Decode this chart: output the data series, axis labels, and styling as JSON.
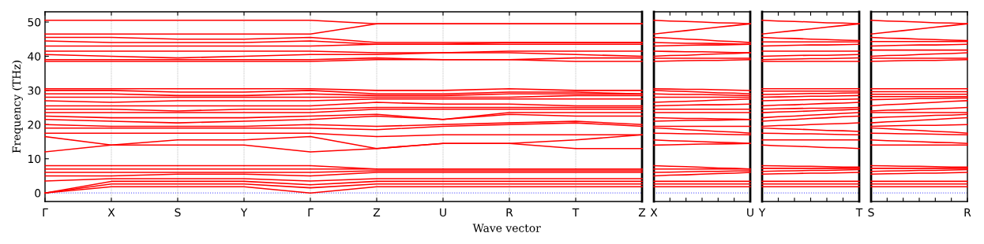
{
  "chart_data": [
    {
      "type": "line",
      "color": "#ff0000",
      "ylabel": "Frequency (THz)",
      "xlabel": "Wave vector",
      "ylim": [
        -2.5,
        53
      ],
      "yticks": [
        0,
        10,
        20,
        30,
        40,
        50
      ],
      "categories": [
        "Γ",
        "X",
        "S",
        "Y",
        "Γ",
        "Z",
        "U",
        "R",
        "T",
        "Z"
      ],
      "grid": "x",
      "ref_lines": [
        {
          "axis": "y",
          "value": 0,
          "color": "#6666ff",
          "line_style": "dotted"
        }
      ],
      "series": [
        {
          "values": [
            0,
            1.8,
            1.8,
            1.8,
            0,
            1.8,
            1.8,
            1.8,
            1.8,
            1.8
          ]
        },
        {
          "values": [
            0,
            2.6,
            2.6,
            2.6,
            1.5,
            2.6,
            2.6,
            2.6,
            2.6,
            2.6
          ]
        },
        {
          "values": [
            0,
            3.4,
            3.4,
            3.4,
            2.4,
            3.4,
            3.4,
            3.4,
            3.4,
            3.4
          ]
        },
        {
          "values": [
            3.5,
            4.2,
            4.2,
            4.2,
            3.5,
            4.2,
            4.2,
            4.2,
            4.2,
            4.2
          ]
        },
        {
          "values": [
            5,
            5,
            5.5,
            5.5,
            5,
            6,
            6,
            6,
            6,
            6
          ]
        },
        {
          "values": [
            6,
            6,
            6,
            6,
            6,
            6.5,
            6.5,
            6.5,
            6.5,
            6.5
          ]
        },
        {
          "values": [
            7,
            7,
            7,
            7,
            7,
            7,
            7,
            7,
            7,
            7
          ]
        },
        {
          "values": [
            8,
            8,
            8,
            8,
            8,
            7,
            7,
            7,
            7,
            7
          ]
        },
        {
          "values": [
            12,
            14,
            14,
            14,
            12,
            13,
            14.5,
            14.5,
            13,
            13
          ]
        },
        {
          "values": [
            16.5,
            14,
            15.5,
            15.5,
            16.5,
            13,
            14.5,
            14.5,
            15.5,
            17
          ]
        },
        {
          "values": [
            17.5,
            17.5,
            17.5,
            17.5,
            17.5,
            16.5,
            17,
            17,
            17,
            17
          ]
        },
        {
          "values": [
            19,
            19,
            19,
            19,
            19,
            18.5,
            19.5,
            20,
            20.5,
            19.5
          ]
        },
        {
          "values": [
            20,
            19.5,
            19.5,
            19.5,
            20,
            19.5,
            20,
            20.5,
            21,
            20
          ]
        },
        {
          "values": [
            21.5,
            21,
            20.5,
            21,
            21.5,
            22.5,
            21.5,
            23,
            22.5,
            22.5
          ]
        },
        {
          "values": [
            22.5,
            22,
            22,
            22,
            22.5,
            23,
            21.5,
            23.5,
            23.5,
            23.5
          ]
        },
        {
          "values": [
            23.5,
            23.5,
            23.5,
            23.5,
            23.5,
            24.5,
            24.5,
            24.5,
            24.5,
            24.5
          ]
        },
        {
          "values": [
            24.5,
            24.5,
            24,
            24.5,
            24.5,
            25,
            25,
            25,
            25,
            25
          ]
        },
        {
          "values": [
            25.5,
            25.5,
            25.5,
            25.5,
            25.5,
            26.5,
            26,
            26,
            25.5,
            25.5
          ]
        },
        {
          "values": [
            27,
            26.5,
            27,
            27,
            27,
            27.5,
            27.5,
            27.5,
            27.5,
            27.5
          ]
        },
        {
          "values": [
            28,
            28,
            28,
            28,
            28,
            28,
            28,
            28,
            28.5,
            28.5
          ]
        },
        {
          "values": [
            29,
            29,
            28.5,
            28.5,
            29,
            28.5,
            28.5,
            29,
            29,
            29
          ]
        },
        {
          "values": [
            30,
            30,
            29.5,
            29.5,
            30,
            29,
            29,
            29.5,
            29.5,
            29
          ]
        },
        {
          "values": [
            30.5,
            30.5,
            30.5,
            30.5,
            30.5,
            30,
            30,
            30.5,
            30,
            30
          ]
        },
        {
          "values": [
            38.5,
            38.5,
            38.5,
            38.5,
            38.5,
            39,
            39,
            39,
            38.5,
            38.5
          ]
        },
        {
          "values": [
            39,
            39,
            39,
            39,
            39,
            39.5,
            39,
            39,
            39.5,
            39.5
          ]
        },
        {
          "values": [
            40.5,
            40,
            39.5,
            40,
            40.5,
            40.5,
            41,
            41,
            40.5,
            40
          ]
        },
        {
          "values": [
            41.5,
            41.5,
            41.5,
            41.5,
            41.5,
            41,
            41,
            41.5,
            41.5,
            41.5
          ]
        },
        {
          "values": [
            43,
            43,
            43,
            43,
            43,
            43.5,
            43.5,
            43.5,
            43.5,
            43.5
          ]
        },
        {
          "values": [
            44.5,
            44,
            44,
            44,
            44.5,
            43.5,
            43.5,
            44,
            44,
            44
          ]
        },
        {
          "values": [
            45.5,
            45.5,
            45,
            45,
            45.5,
            44,
            44,
            44,
            44,
            44
          ]
        },
        {
          "values": [
            46.5,
            46.5,
            46.5,
            46.5,
            46.5,
            49.5,
            49.5,
            49.5,
            49.5,
            49.5
          ]
        },
        {
          "values": [
            50.5,
            50.5,
            50.5,
            50.5,
            50.5,
            49.5,
            49.5,
            49.5,
            49.5,
            49.5
          ]
        }
      ]
    },
    {
      "type": "line",
      "color": "#ff0000",
      "ylim": [
        -2.5,
        53
      ],
      "yticks": [
        0,
        10,
        20,
        30,
        40,
        50
      ],
      "tick_labels": "x",
      "categories": [
        "X",
        null,
        null,
        null,
        null,
        null,
        "U"
      ],
      "ref_lines": [
        {
          "axis": "y",
          "value": 0,
          "color": "#6666ff",
          "line_style": "dotted"
        }
      ],
      "series": [
        {
          "values": [
            1.8,
            1.8,
            1.8,
            1.8,
            1.8,
            1.8,
            1.8
          ]
        },
        {
          "values": [
            2.6,
            2.6,
            2.6,
            2.6,
            2.6,
            2.6,
            2.6
          ]
        },
        {
          "values": [
            3.4,
            3.4,
            3.4,
            3.4,
            3.4,
            3.4,
            3.4
          ]
        },
        {
          "values": [
            5,
            5.2,
            5.3,
            5.5,
            5.7,
            5.8,
            6
          ]
        },
        {
          "values": [
            6,
            6.1,
            6.2,
            6.3,
            6.3,
            6.4,
            6.5
          ]
        },
        {
          "values": [
            7,
            7,
            7,
            7,
            7,
            7,
            7
          ]
        },
        {
          "values": [
            8,
            7.8,
            7.7,
            7.5,
            7.3,
            7.2,
            7
          ]
        },
        {
          "values": [
            14,
            14.1,
            14.2,
            14.3,
            14.3,
            14.4,
            14.5
          ]
        },
        {
          "values": [
            15.5,
            15.3,
            15.2,
            15,
            14.8,
            14.7,
            14.5
          ]
        },
        {
          "values": [
            17.5,
            17.4,
            17.3,
            17.3,
            17.2,
            17.1,
            17
          ]
        },
        {
          "values": [
            19,
            18.8,
            18.5,
            18.3,
            18,
            17.8,
            17.5
          ]
        },
        {
          "values": [
            19.5,
            19.5,
            19.5,
            19.5,
            19.5,
            19.5,
            19.5
          ]
        },
        {
          "values": [
            21,
            21.1,
            21.2,
            21.3,
            21.3,
            21.4,
            21.5
          ]
        },
        {
          "values": [
            22,
            21.9,
            21.8,
            21.8,
            21.7,
            21.6,
            21.5
          ]
        },
        {
          "values": [
            23.5,
            23.5,
            23.5,
            23.5,
            23.5,
            23.5,
            23.5
          ]
        },
        {
          "values": [
            24.5,
            24.5,
            24.5,
            24.5,
            24.5,
            24.5,
            24.5
          ]
        },
        {
          "values": [
            25.5,
            25.6,
            25.7,
            25.8,
            25.8,
            25.9,
            26
          ]
        },
        {
          "values": [
            26.5,
            26.7,
            26.8,
            27,
            27.2,
            27.3,
            27.5
          ]
        },
        {
          "values": [
            28,
            28,
            28,
            28,
            28,
            28,
            28
          ]
        },
        {
          "values": [
            29,
            28.9,
            28.8,
            28.8,
            28.7,
            28.6,
            28.5
          ]
        },
        {
          "values": [
            30,
            29.8,
            29.7,
            29.5,
            29.3,
            29.2,
            29
          ]
        },
        {
          "values": [
            30.5,
            30.4,
            30.3,
            30.3,
            30.2,
            30.1,
            30
          ]
        },
        {
          "values": [
            38.5,
            38.6,
            38.7,
            38.8,
            38.8,
            38.9,
            39
          ]
        },
        {
          "values": [
            39.4,
            39.4,
            39.4,
            39.4,
            39.4,
            39.4,
            39.4
          ]
        },
        {
          "values": [
            40,
            40.2,
            40.3,
            40.5,
            40.7,
            40.8,
            41
          ]
        },
        {
          "values": [
            41.5,
            41.4,
            41.3,
            41.3,
            41.2,
            41.1,
            41
          ]
        },
        {
          "values": [
            43,
            43.1,
            43.2,
            43.3,
            43.3,
            43.4,
            43.5
          ]
        },
        {
          "values": [
            44,
            43.9,
            43.8,
            43.8,
            43.7,
            43.6,
            43.5
          ]
        },
        {
          "values": [
            45.5,
            45.3,
            45,
            44.8,
            44.5,
            44.3,
            44
          ]
        },
        {
          "values": [
            46.5,
            47,
            47.5,
            48,
            48.5,
            49,
            49.5
          ]
        },
        {
          "values": [
            50.5,
            50.3,
            50.2,
            50,
            49.8,
            49.7,
            49.5
          ]
        }
      ]
    },
    {
      "type": "line",
      "color": "#ff0000",
      "ylim": [
        -2.5,
        53
      ],
      "yticks": [
        0,
        10,
        20,
        30,
        40,
        50
      ],
      "tick_labels": "x",
      "categories": [
        "Y",
        null,
        null,
        null,
        null,
        null,
        "T"
      ],
      "ref_lines": [
        {
          "axis": "y",
          "value": 0,
          "color": "#6666ff",
          "line_style": "dotted"
        }
      ],
      "series": [
        {
          "values": [
            1.8,
            1.8,
            1.8,
            1.8,
            1.8,
            1.8,
            1.8
          ]
        },
        {
          "values": [
            2.6,
            2.6,
            2.6,
            2.6,
            2.6,
            2.6,
            2.6
          ]
        },
        {
          "values": [
            3.4,
            3.4,
            3.4,
            3.4,
            3.4,
            3.4,
            3.4
          ]
        },
        {
          "values": [
            5.5,
            5.6,
            5.7,
            5.8,
            5.8,
            5.9,
            6
          ]
        },
        {
          "values": [
            6.3,
            6.4,
            6.5,
            6.6,
            6.6,
            6.7,
            6.8
          ]
        },
        {
          "values": [
            7.2,
            7.2,
            7.2,
            7.2,
            7.2,
            7.2,
            7.2
          ]
        },
        {
          "values": [
            8,
            7.9,
            7.8,
            7.8,
            7.7,
            7.6,
            7.6
          ]
        },
        {
          "values": [
            14,
            13.8,
            13.7,
            13.5,
            13.3,
            13.2,
            13
          ]
        },
        {
          "values": [
            15.5,
            15.5,
            15.5,
            15.5,
            15.5,
            15.5,
            15.5
          ]
        },
        {
          "values": [
            17.5,
            17.4,
            17.3,
            17.3,
            17.2,
            17.1,
            17
          ]
        },
        {
          "values": [
            19,
            18.8,
            18.7,
            18.5,
            18.3,
            18.2,
            18
          ]
        },
        {
          "values": [
            19.5,
            19.7,
            19.8,
            20,
            20.2,
            20.3,
            20.5
          ]
        },
        {
          "values": [
            21,
            21.3,
            21.5,
            21.8,
            22,
            22.3,
            22.5
          ]
        },
        {
          "values": [
            22,
            22.3,
            22.5,
            22.8,
            23,
            23.3,
            23.5
          ]
        },
        {
          "values": [
            23.5,
            23.7,
            23.8,
            24,
            24.2,
            24.3,
            24.5
          ]
        },
        {
          "values": [
            24.5,
            24.6,
            24.7,
            24.8,
            24.8,
            24.9,
            25
          ]
        },
        {
          "values": [
            25.5,
            25.7,
            25.8,
            26,
            26.2,
            26.3,
            26.5
          ]
        },
        {
          "values": [
            27,
            27.1,
            27.2,
            27.3,
            27.3,
            27.4,
            27.5
          ]
        },
        {
          "values": [
            28,
            28.1,
            28.2,
            28.3,
            28.3,
            28.4,
            28.5
          ]
        },
        {
          "values": [
            28.8,
            28.9,
            29,
            29.1,
            29.1,
            29.2,
            29.3
          ]
        },
        {
          "values": [
            29.8,
            29.8,
            29.8,
            29.8,
            29.8,
            29.8,
            29.8
          ]
        },
        {
          "values": [
            30.5,
            30.5,
            30.5,
            30.5,
            30.5,
            30.5,
            30.5
          ]
        },
        {
          "values": [
            38.5,
            38.5,
            38.5,
            38.5,
            38.5,
            38.5,
            38.5
          ]
        },
        {
          "values": [
            39,
            39.1,
            39.2,
            39.3,
            39.3,
            39.4,
            39.5
          ]
        },
        {
          "values": [
            40,
            40.1,
            40.2,
            40.3,
            40.3,
            40.4,
            40.5
          ]
        },
        {
          "values": [
            41.5,
            41.5,
            41.5,
            41.5,
            41.5,
            41.5,
            41.5
          ]
        },
        {
          "values": [
            43,
            43.1,
            43.2,
            43.3,
            43.3,
            43.4,
            43.5
          ]
        },
        {
          "values": [
            44.2,
            44.2,
            44.2,
            44.2,
            44.2,
            44.2,
            44.2
          ]
        },
        {
          "values": [
            45.5,
            45.3,
            45.2,
            45,
            44.9,
            44.7,
            44.6
          ]
        },
        {
          "values": [
            46.5,
            47,
            47.5,
            48,
            48.5,
            49,
            49.5
          ]
        },
        {
          "values": [
            50.5,
            50.3,
            50.2,
            50,
            49.8,
            49.7,
            49.5
          ]
        }
      ]
    },
    {
      "type": "line",
      "color": "#ff0000",
      "ylim": [
        -2.5,
        53
      ],
      "yticks": [
        0,
        10,
        20,
        30,
        40,
        50
      ],
      "tick_labels": "x",
      "categories": [
        "S",
        null,
        null,
        null,
        null,
        null,
        "R"
      ],
      "ref_lines": [
        {
          "axis": "y",
          "value": 0,
          "color": "#6666ff",
          "line_style": "dotted"
        }
      ],
      "series": [
        {
          "values": [
            1.8,
            1.8,
            1.8,
            1.8,
            1.8,
            1.8,
            1.8
          ]
        },
        {
          "values": [
            2.6,
            2.6,
            2.6,
            2.6,
            2.6,
            2.6,
            2.6
          ]
        },
        {
          "values": [
            3.4,
            3.4,
            3.4,
            3.4,
            3.4,
            3.4,
            3.4
          ]
        },
        {
          "values": [
            5.5,
            5.6,
            5.7,
            5.8,
            5.8,
            5.9,
            6
          ]
        },
        {
          "values": [
            6.3,
            6.4,
            6.5,
            6.6,
            6.6,
            6.7,
            6.8
          ]
        },
        {
          "values": [
            7.2,
            7.2,
            7.2,
            7.2,
            7.2,
            7.2,
            7.2
          ]
        },
        {
          "values": [
            8,
            7.9,
            7.8,
            7.8,
            7.7,
            7.6,
            7.6
          ]
        },
        {
          "values": [
            14,
            14,
            14,
            14,
            14,
            14,
            14
          ]
        },
        {
          "values": [
            15.5,
            15.3,
            15.2,
            15,
            14.8,
            14.7,
            14.5
          ]
        },
        {
          "values": [
            17.5,
            17.4,
            17.3,
            17.3,
            17.2,
            17.1,
            17
          ]
        },
        {
          "values": [
            19,
            18.8,
            18.5,
            18.3,
            18,
            17.8,
            17.5
          ]
        },
        {
          "values": [
            19.5,
            19.6,
            19.7,
            19.8,
            19.8,
            19.9,
            20
          ]
        },
        {
          "values": [
            20.5,
            20.8,
            21,
            21.3,
            21.5,
            21.8,
            22
          ]
        },
        {
          "values": [
            22,
            22.2,
            22.3,
            22.5,
            22.7,
            22.8,
            23
          ]
        },
        {
          "values": [
            23.5,
            23.5,
            23.5,
            23.5,
            23.5,
            23.5,
            23.5
          ]
        },
        {
          "values": [
            24,
            24.2,
            24.3,
            24.5,
            24.7,
            24.8,
            25
          ]
        },
        {
          "values": [
            25.5,
            25.8,
            26,
            26.3,
            26.5,
            26.8,
            27
          ]
        },
        {
          "values": [
            27.3,
            27.4,
            27.5,
            27.6,
            27.6,
            27.7,
            27.8
          ]
        },
        {
          "values": [
            28.2,
            28.2,
            28.2,
            28.2,
            28.2,
            28.2,
            28.2
          ]
        },
        {
          "values": [
            28.9,
            28.9,
            28.9,
            28.9,
            28.9,
            28.9,
            28.9
          ]
        },
        {
          "values": [
            29.6,
            29.6,
            29.6,
            29.6,
            29.6,
            29.6,
            29.6
          ]
        },
        {
          "values": [
            30.5,
            30.5,
            30.5,
            30.5,
            30.5,
            30.5,
            30.5
          ]
        },
        {
          "values": [
            38.5,
            38.6,
            38.7,
            38.8,
            38.8,
            38.9,
            39
          ]
        },
        {
          "values": [
            39.4,
            39.4,
            39.4,
            39.4,
            39.4,
            39.4,
            39.4
          ]
        },
        {
          "values": [
            40,
            40.2,
            40.3,
            40.5,
            40.7,
            40.8,
            41
          ]
        },
        {
          "values": [
            41.8,
            41.8,
            41.8,
            41.8,
            41.8,
            41.8,
            41.8
          ]
        },
        {
          "values": [
            43,
            43.1,
            43.2,
            43.3,
            43.3,
            43.4,
            43.5
          ]
        },
        {
          "values": [
            44.3,
            44.3,
            44.3,
            44.3,
            44.3,
            44.3,
            44.3
          ]
        },
        {
          "values": [
            45.5,
            45.3,
            45.2,
            45,
            44.9,
            44.7,
            44.6
          ]
        },
        {
          "values": [
            46.5,
            47,
            47.5,
            48,
            48.5,
            49,
            49.5
          ]
        },
        {
          "values": [
            50.5,
            50.3,
            50.2,
            50,
            49.8,
            49.7,
            49.5
          ]
        }
      ]
    }
  ]
}
